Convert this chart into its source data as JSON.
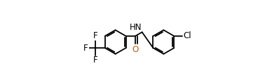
{
  "bg_color": "#ffffff",
  "line_color": "#000000",
  "atom_colors": {
    "F": "#000000",
    "O": "#cc5500",
    "N": "#000000",
    "Cl": "#000000"
  },
  "bond_width": 1.3,
  "dbo": 0.012,
  "font_size": 8.5,
  "figsize": [
    3.98,
    1.21
  ],
  "dpi": 100,
  "r": 0.115,
  "lrx": 0.27,
  "lry": 0.5,
  "rrx": 0.73,
  "rry": 0.5
}
